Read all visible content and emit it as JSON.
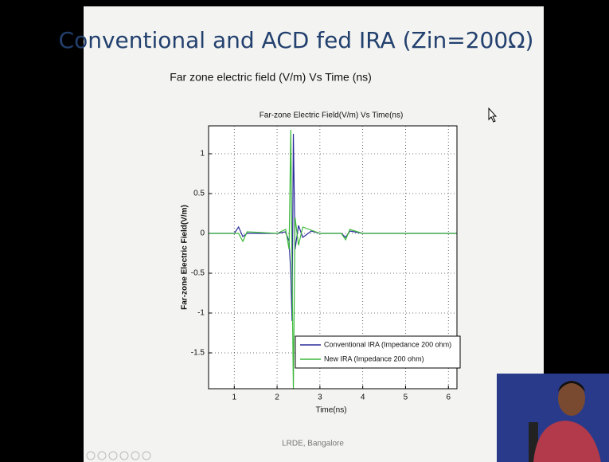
{
  "slide": {
    "title": "Conventional and ACD fed IRA (Zin=200Ω)",
    "subtitle": "Far zone electric field (V/m) Vs Time (ns)",
    "footer": "LRDE, Bangalore"
  },
  "chart_data": {
    "type": "line",
    "title": "Far-zone Electric Field(V/m) Vs Time(ns)",
    "x_label": "Time(ns)",
    "y_label": "Far-zone Electric Field(V/m)",
    "x": [
      0.4,
      1.0,
      1.1,
      1.2,
      1.3,
      2.0,
      2.2,
      2.28,
      2.32,
      2.35,
      2.38,
      2.42,
      2.5,
      2.6,
      2.8,
      3.0,
      3.5,
      3.6,
      3.7,
      4.0,
      4.5,
      6.2
    ],
    "series": [
      {
        "name": "Conventional IRA (Impedance 200 ohm)",
        "color": "#2b2b9c",
        "values": [
          0,
          0,
          0.08,
          -0.04,
          0,
          0,
          0.02,
          -0.1,
          -0.5,
          -1.1,
          1.25,
          -0.2,
          0.1,
          -0.05,
          0.03,
          0,
          0,
          -0.05,
          0.03,
          0,
          0,
          0
        ]
      },
      {
        "name": "New IRA (Impedance 200 ohm)",
        "color": "#3cb83c",
        "values": [
          0,
          0,
          0,
          -0.1,
          0.02,
          0,
          0.05,
          -0.2,
          1.3,
          -0.5,
          -1.95,
          0.2,
          -0.15,
          0.08,
          0.04,
          0,
          0,
          -0.08,
          0.05,
          0,
          0,
          0
        ]
      }
    ],
    "xlim": [
      0.4,
      6.2
    ],
    "ylim": [
      -1.95,
      1.35
    ],
    "xticks": [
      1,
      2,
      3,
      4,
      5,
      6
    ],
    "yticks": [
      -1.5,
      -1,
      -0.5,
      0,
      0.5,
      1
    ],
    "grid": true,
    "legend": "lower right"
  }
}
